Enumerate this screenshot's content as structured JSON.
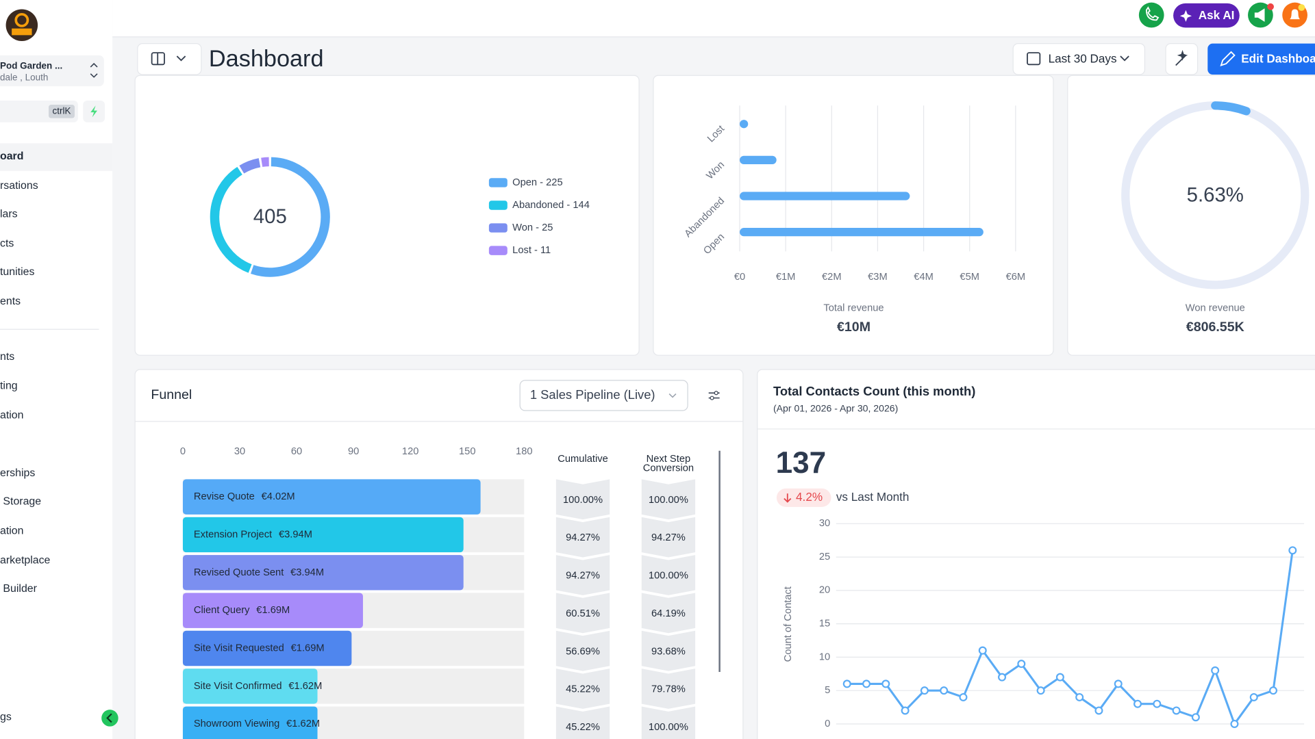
{
  "header": {
    "ask_ai": "Ask AI",
    "title": "Dashboard",
    "date_range": "Last 30 Days",
    "edit": "Edit Dashboard"
  },
  "sidebar": {
    "location": "Pod Garden ...",
    "sublocation": "dale , Louth",
    "shortcut": "ctrlK",
    "nav": [
      "oard",
      "rsations",
      "lars",
      "cts",
      "tunities",
      "ents",
      "nts",
      "ting",
      "ation",
      "erships",
      " Storage",
      "ation",
      "arketplace",
      " Builder",
      "gs"
    ]
  },
  "chart_data": [
    {
      "type": "pie",
      "total": 405,
      "categories": [
        "Open",
        "Abandoned",
        "Won",
        "Lost"
      ],
      "values": [
        225,
        144,
        25,
        11
      ],
      "value_labels": [
        "Open - 225",
        "Abandoned - 144",
        "Won - 25",
        "Lost - 11"
      ],
      "colors": [
        "#5aabf5",
        "#22c7e8",
        "#7b8ff0",
        "#a78bfa"
      ]
    },
    {
      "type": "hbar",
      "categories": [
        "Lost",
        "Won",
        "Abandoned",
        "Open"
      ],
      "values": [
        100000,
        800000,
        3700000,
        5300000
      ],
      "color": "#5aabf5",
      "xlim": [
        0,
        6000000
      ],
      "xticks": [
        {
          "value": 0,
          "label": "€0"
        },
        {
          "value": 1000000,
          "label": "€1M"
        },
        {
          "value": 2000000,
          "label": "€2M"
        },
        {
          "value": 3000000,
          "label": "€3M"
        },
        {
          "value": 4000000,
          "label": "€4M"
        },
        {
          "value": 5000000,
          "label": "€5M"
        },
        {
          "value": 6000000,
          "label": "€6M"
        }
      ],
      "grid": true,
      "footer_label": "Total revenue",
      "footer_value": "€10M"
    },
    {
      "type": "gauge",
      "value": 5.63,
      "value_label": "5.63%",
      "ylim": [
        0,
        100
      ],
      "color": "#5aabf5",
      "track_color": "#e6ebf7",
      "footer_label": "Won revenue",
      "footer_value": "€806.55K"
    },
    {
      "type": "funnel",
      "title": "Funnel",
      "pipeline": "1 Sales Pipeline (Live)",
      "categories": [
        "Revise Quote",
        "Extension Project",
        "Revised Quote Sent",
        "Client Query",
        "Site Visit Requested",
        "Site Visit Confirmed",
        "Showroom Viewing"
      ],
      "values": [
        157,
        148,
        148,
        95,
        89,
        71,
        71
      ],
      "amounts": [
        "€4.02M",
        "€3.94M",
        "€3.94M",
        "€1.69M",
        "€1.69M",
        "€1.62M",
        "€1.62M"
      ],
      "colors": [
        "#55aaf7",
        "#22c7e8",
        "#7b8ff0",
        "#a78bfa",
        "#4f86ee",
        "#5fdcf0",
        "#38b0f5"
      ],
      "xlim": [
        0,
        180
      ],
      "xticks": [
        0,
        30,
        60,
        90,
        120,
        150,
        180
      ],
      "columns": [
        {
          "title": "Cumulative",
          "values": [
            "100.00%",
            "94.27%",
            "94.27%",
            "60.51%",
            "56.69%",
            "45.22%",
            "45.22%"
          ]
        },
        {
          "title": "Next Step Conversion",
          "values": [
            "100.00%",
            "94.27%",
            "100.00%",
            "64.19%",
            "93.68%",
            "79.78%",
            "100.00%"
          ]
        }
      ]
    },
    {
      "type": "line",
      "title": "Total Contacts Count (this month)",
      "subtitle": "(Apr 01, 2026 - Apr 30, 2026)",
      "total": 137,
      "change_label": "4.2%",
      "change_text": "vs Last Month",
      "ylabel": "Count of Contact",
      "values": [
        6,
        6,
        6,
        2,
        5,
        5,
        4,
        11,
        7,
        9,
        5,
        7,
        4,
        2,
        6,
        3,
        3,
        2,
        1,
        8,
        0,
        4,
        5,
        26
      ],
      "color": "#5aabf5",
      "ylim": [
        0,
        30
      ],
      "yticks": [
        0,
        5,
        10,
        15,
        20,
        25,
        30
      ],
      "grid": true
    }
  ]
}
